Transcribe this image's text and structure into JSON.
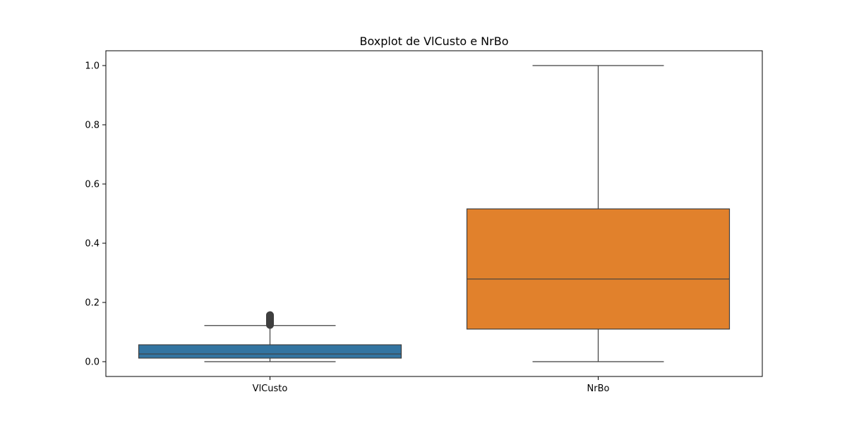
{
  "chart_data": {
    "type": "box",
    "title": "Boxplot de VlCusto e NrBo",
    "xlabel": "",
    "ylabel": "",
    "ylim": [
      -0.05,
      1.05
    ],
    "yticks": [
      "0.0",
      "0.2",
      "0.4",
      "0.6",
      "0.8",
      "1.0"
    ],
    "grid": false,
    "categories": [
      "VlCusto",
      "NrBo"
    ],
    "boxes": [
      {
        "category": "VlCusto",
        "color": "#3274a1",
        "whisker_low": 0.0,
        "q1": 0.012,
        "median": 0.026,
        "q3": 0.057,
        "whisker_high": 0.122,
        "outliers": [
          0.124,
          0.127,
          0.13,
          0.133,
          0.136,
          0.139,
          0.142,
          0.145,
          0.148,
          0.151,
          0.154,
          0.157
        ]
      },
      {
        "category": "NrBo",
        "color": "#e1812c",
        "whisker_low": 0.0,
        "q1": 0.11,
        "median": 0.279,
        "q3": 0.516,
        "whisker_high": 1.0,
        "outliers": []
      }
    ]
  }
}
